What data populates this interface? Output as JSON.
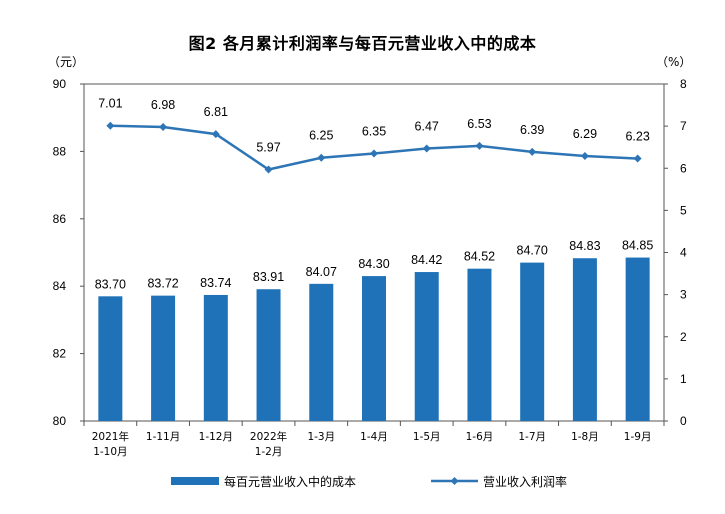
{
  "chart_data": {
    "type": "bar+line",
    "title": "图2  各月累计利润率与每百元营业收入中的成本",
    "left_unit": "（元）",
    "right_unit": "（%）",
    "categories": [
      "2021年\n1-10月",
      "1-11月",
      "1-12月",
      "2022年\n1-2月",
      "1-3月",
      "1-4月",
      "1-5月",
      "1-6月",
      "1-7月",
      "1-8月",
      "1-9月"
    ],
    "left_axis": {
      "min": 80,
      "max": 90,
      "ticks": [
        80,
        82,
        84,
        86,
        88,
        90
      ]
    },
    "right_axis": {
      "min": 0,
      "max": 8,
      "ticks": [
        0,
        1,
        2,
        3,
        4,
        5,
        6,
        7,
        8
      ]
    },
    "series": [
      {
        "name": "每百元营业收入中的成本",
        "kind": "bar",
        "axis": "left",
        "color": "#1f72b8",
        "values": [
          83.7,
          83.72,
          83.74,
          83.91,
          84.07,
          84.3,
          84.42,
          84.52,
          84.7,
          84.83,
          84.85
        ],
        "labels": [
          "83.70",
          "83.72",
          "83.74",
          "83.91",
          "84.07",
          "84.30",
          "84.42",
          "84.52",
          "84.70",
          "84.83",
          "84.85"
        ]
      },
      {
        "name": "营业收入利润率",
        "kind": "line",
        "axis": "right",
        "color": "#2e75b6",
        "values": [
          7.01,
          6.98,
          6.81,
          5.97,
          6.25,
          6.35,
          6.47,
          6.53,
          6.39,
          6.29,
          6.23
        ],
        "labels": [
          "7.01",
          "6.98",
          "6.81",
          "5.97",
          "6.25",
          "6.35",
          "6.47",
          "6.53",
          "6.39",
          "6.29",
          "6.23"
        ]
      }
    ],
    "legend_position": "bottom",
    "grid": false
  }
}
